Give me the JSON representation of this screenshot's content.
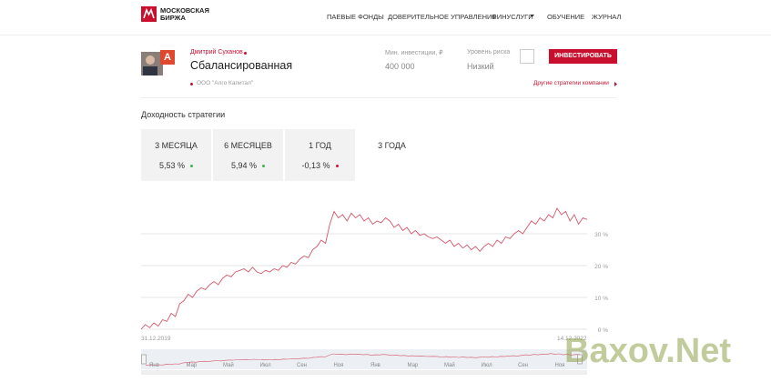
{
  "header": {
    "logo_lines": [
      "МОСКОВСКАЯ",
      "БИРЖА"
    ],
    "nav": [
      "ПАЕВЫЕ ФОНДЫ",
      "ДОВЕРИТЕЛЬНОЕ УПРАВЛЕНИЕ",
      "ФИНУСЛУГИ",
      "ОБУЧЕНИЕ",
      "ЖУРНАЛ"
    ]
  },
  "strategy": {
    "badge": "A",
    "author": "Дмитрий Суханов",
    "name": "Сбалансированная",
    "company": "ООО \"Алго Капитал\"",
    "min_investment_label": "Мин. инвестиции, ₽",
    "min_investment": "400 000",
    "risk_label": "Уровень риска",
    "risk": "Низкий",
    "invest_button": "ИНВЕСТИРОВАТЬ",
    "other_link": "Другие стратегии компании"
  },
  "returns": {
    "title": "Доходность стратегии",
    "tabs": [
      {
        "label": "3 МЕСЯЦА",
        "value": "5,53 %",
        "dot_color": "#3cb44b"
      },
      {
        "label": "6 МЕСЯЦЕВ",
        "value": "5,94 %",
        "dot_color": "#3cb44b"
      },
      {
        "label": "1 ГОД",
        "value": "-0,13 %",
        "dot_color": "#d0103a"
      },
      {
        "label": "3 ГОДА"
      }
    ]
  },
  "chart_data": {
    "type": "line",
    "color": "#d4566a",
    "grid": true,
    "ylim": [
      -1,
      43
    ],
    "yticks": [
      {
        "value": 0,
        "label": "0 %"
      },
      {
        "value": 10,
        "label": "10 %"
      },
      {
        "value": 20,
        "label": "20 %"
      },
      {
        "value": 30,
        "label": "30 %"
      }
    ],
    "start_date": "31.12.2019",
    "end_date": "14.12.2022",
    "navigator_labels": [
      "Янв",
      "Мар",
      "Май",
      "Июл",
      "Сен",
      "Ноя",
      "Янв",
      "Мар",
      "Май",
      "Июл",
      "Сен",
      "Ноя"
    ],
    "values": [
      0,
      1.5,
      0.5,
      2,
      1,
      3,
      2.5,
      5,
      4,
      8,
      9,
      11,
      10,
      12,
      13,
      12.5,
      14,
      15,
      14,
      16,
      17,
      16.5,
      18,
      18.5,
      19,
      18,
      19.5,
      18,
      17.5,
      18.5,
      18,
      19,
      18.5,
      20,
      19.5,
      21,
      20.5,
      22,
      23,
      22.5,
      25,
      26,
      28,
      27,
      33,
      37,
      35,
      36,
      34,
      36.5,
      35,
      36,
      34,
      35,
      33,
      34,
      33.5,
      35,
      34,
      32,
      33,
      31,
      32,
      30,
      31,
      29.5,
      30,
      29,
      28.5,
      29,
      28,
      27,
      28,
      26,
      27,
      25.5,
      26.5,
      25,
      26,
      24.5,
      26,
      27,
      26,
      28,
      27,
      29,
      28.5,
      30,
      31,
      30,
      32,
      34,
      33,
      35,
      34,
      36,
      35,
      38,
      36,
      37,
      34,
      36,
      33,
      35,
      34.5
    ]
  },
  "watermark": "Baxov.Net"
}
